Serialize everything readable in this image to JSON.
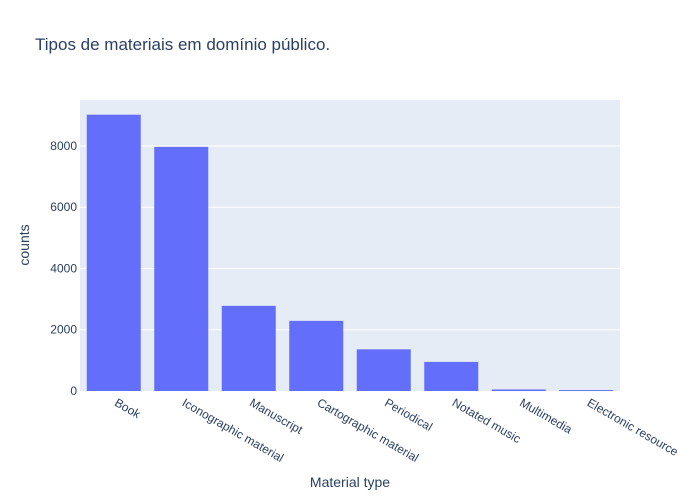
{
  "chart_data": {
    "type": "bar",
    "title": "Tipos de materiais em domínio público.",
    "xlabel": "Material type",
    "ylabel": "counts",
    "categories": [
      "Book",
      "Iconographic material",
      "Manuscript",
      "Cartographic material",
      "Periodical",
      "Notated music",
      "Multimedia",
      "Electronic resource"
    ],
    "values": [
      9020,
      7970,
      2780,
      2290,
      1360,
      950,
      50,
      30
    ],
    "ylim": [
      0,
      9500
    ],
    "yticks": [
      0,
      2000,
      4000,
      6000,
      8000
    ],
    "ytick_labels": [
      "0",
      "2000",
      "4000",
      "6000",
      "8000"
    ],
    "grid": true,
    "legend": "none",
    "colors": {
      "bar": "#636efa",
      "plot_bg": "#e5ecf6",
      "grid": "#ffffff",
      "text": "#2a3f5f"
    }
  }
}
